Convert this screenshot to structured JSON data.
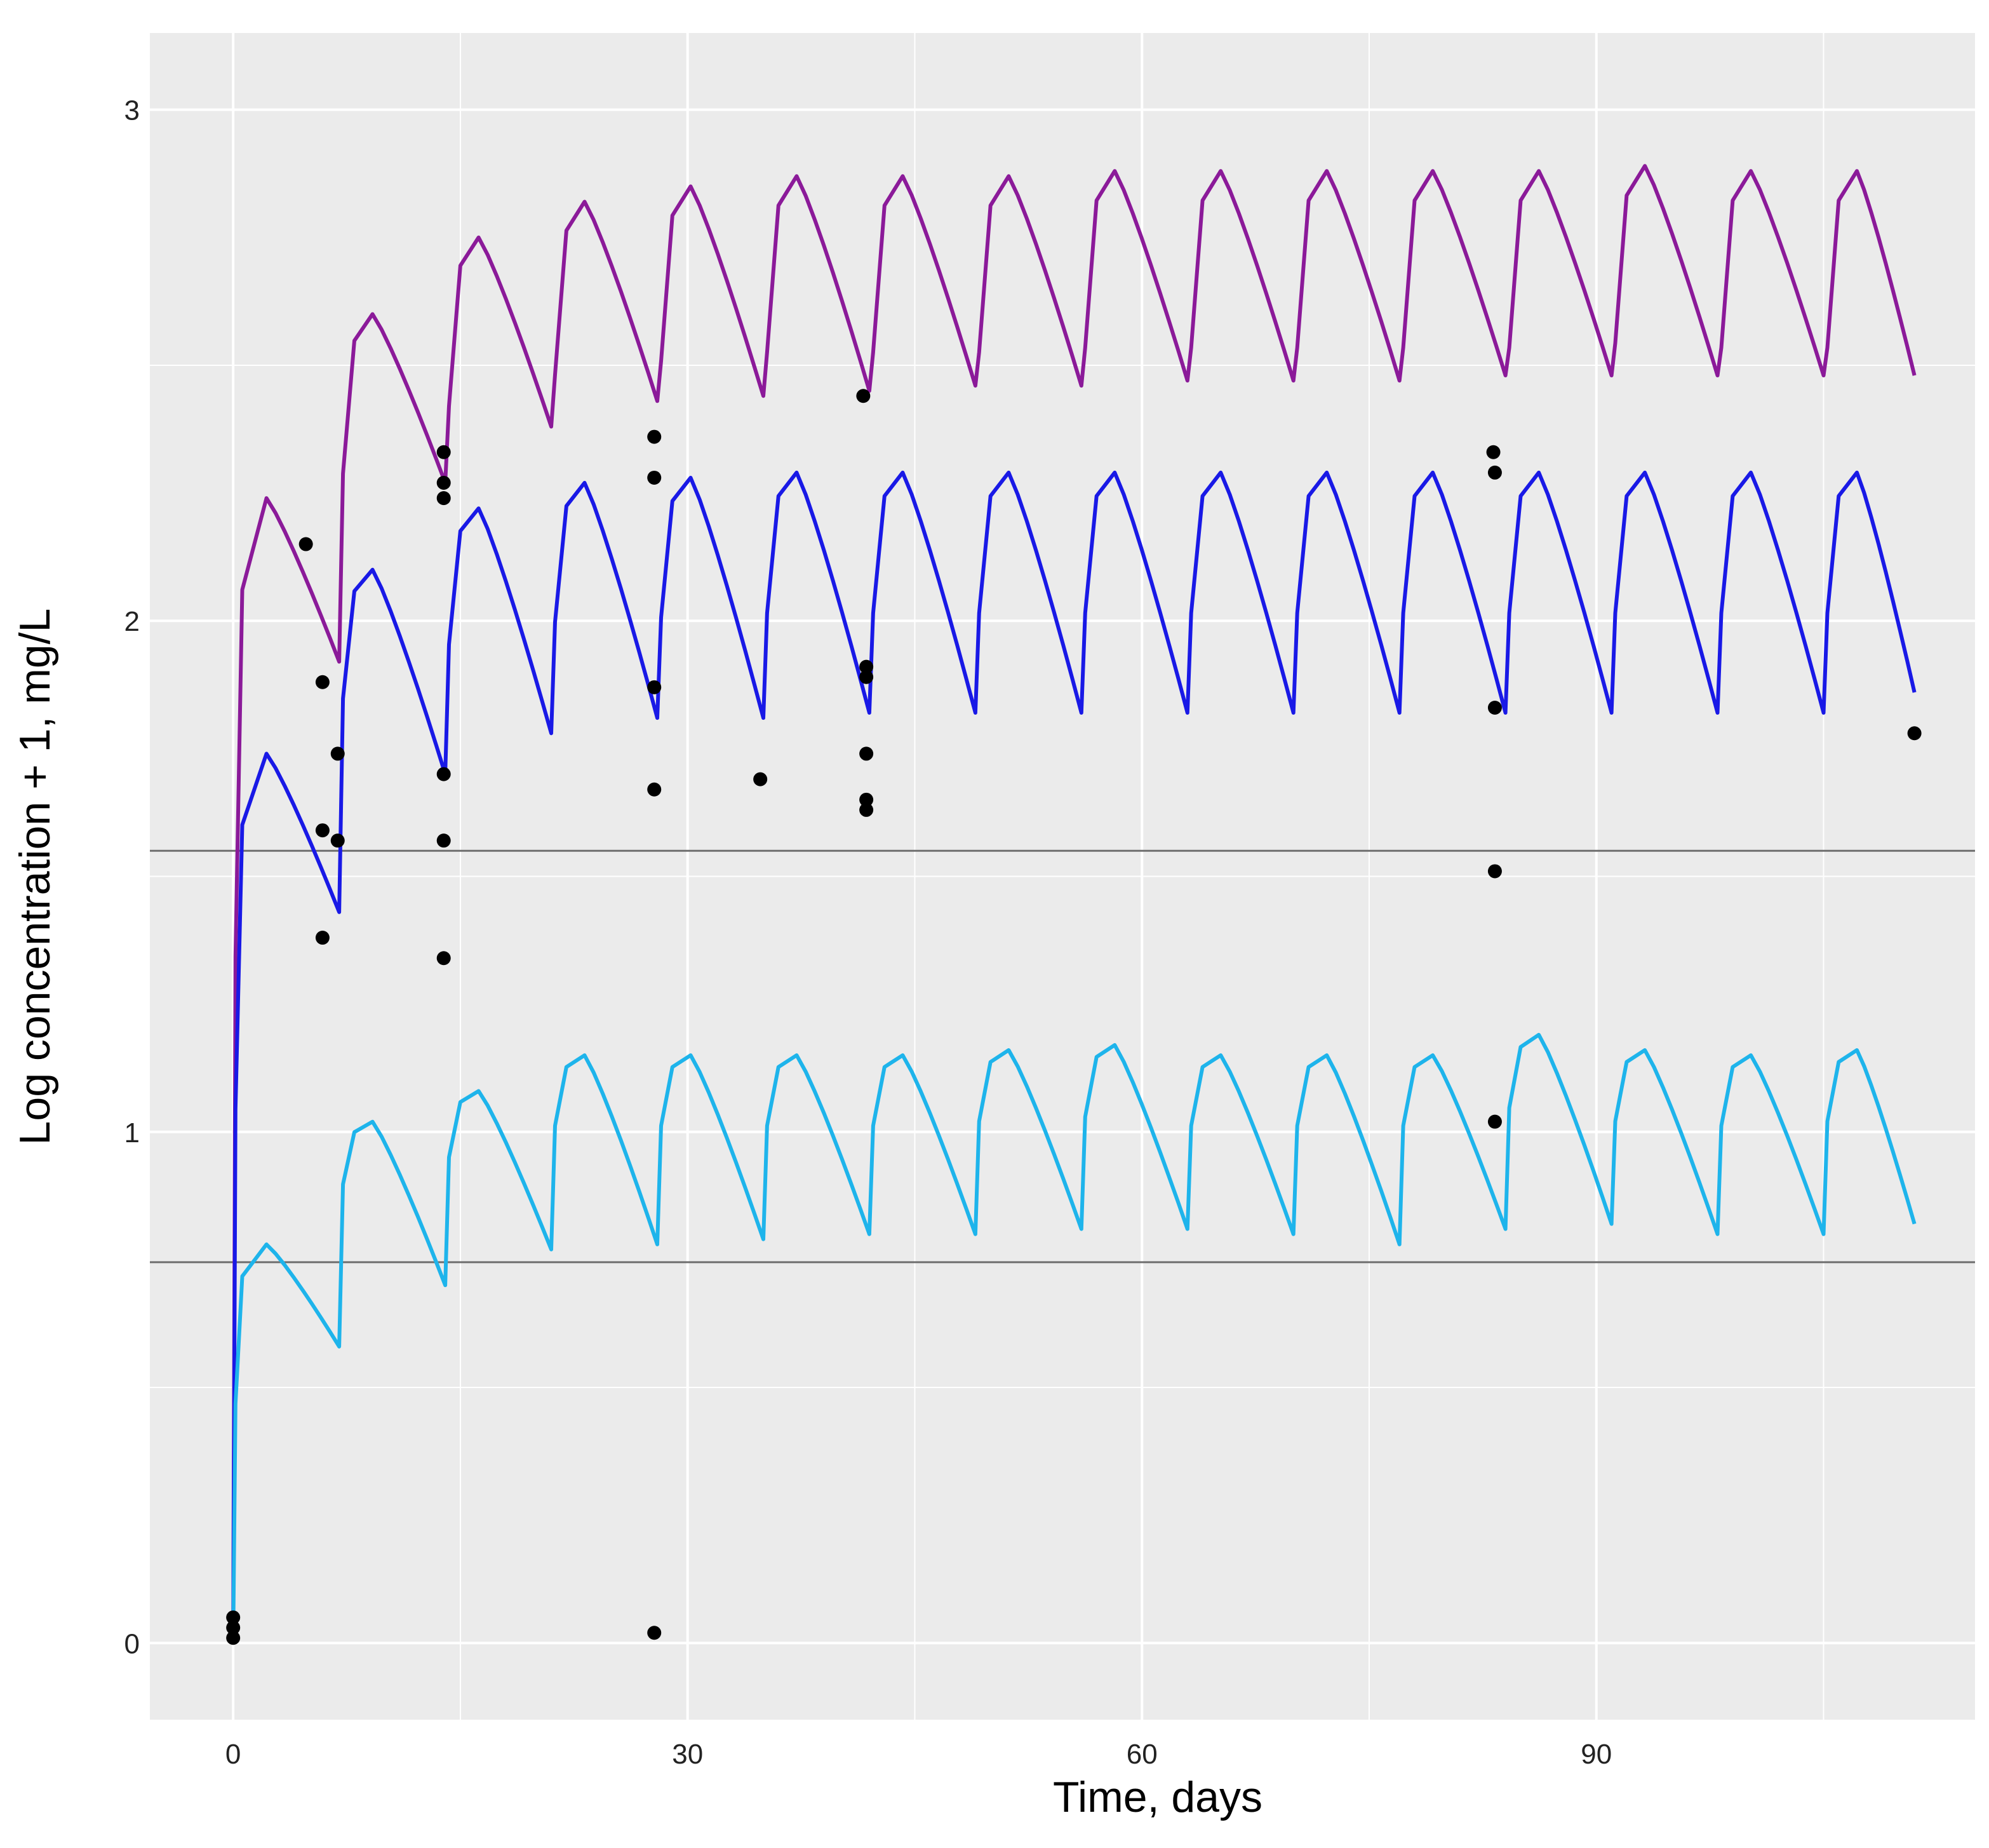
{
  "chart_data": {
    "type": "line",
    "title": "",
    "xlabel": "Time, days",
    "ylabel": "Log concentration + 1, mg/L",
    "xlim": [
      -5.5,
      115
    ],
    "ylim": [
      -0.15,
      3.15
    ],
    "xticks": [
      0,
      30,
      60,
      90
    ],
    "xtick_labels": [
      "0",
      "30",
      "60",
      "90"
    ],
    "yticks": [
      0,
      1,
      2,
      3
    ],
    "ytick_labels": [
      "0",
      "1",
      "2",
      "3"
    ],
    "reference_lines": [
      1.55,
      0.745
    ],
    "dosing": {
      "first_dose_day": 0,
      "second_dose_day": 7,
      "interval_days": 7,
      "end_day": 111
    },
    "series": [
      {
        "name": "upper",
        "color": "#8B1A99",
        "peaks": [
          2.24,
          2.6,
          2.75,
          2.82,
          2.85,
          2.87,
          2.87,
          2.87,
          2.88,
          2.88,
          2.88,
          2.88,
          2.88,
          2.89,
          2.88,
          2.88
        ],
        "troughs": [
          1.92,
          2.27,
          2.38,
          2.43,
          2.44,
          2.45,
          2.46,
          2.46,
          2.47,
          2.47,
          2.47,
          2.48
        ],
        "end_value": 2.48
      },
      {
        "name": "middle",
        "color": "#1919E6",
        "peaks": [
          1.74,
          2.1,
          2.22,
          2.27,
          2.28,
          2.29,
          2.29,
          2.29,
          2.29,
          2.29,
          2.29,
          2.29,
          2.29,
          2.29,
          2.29,
          2.29
        ],
        "troughs": [
          1.43,
          1.7,
          1.78,
          1.81,
          1.81,
          1.82,
          1.82,
          1.82,
          1.82,
          1.82,
          1.82,
          1.82,
          1.82,
          1.82,
          1.82
        ],
        "end_value": 1.86
      },
      {
        "name": "lower",
        "color": "#1EB4EB",
        "peaks": [
          0.78,
          1.02,
          1.08,
          1.15,
          1.15,
          1.15,
          1.15,
          1.16,
          1.17,
          1.15,
          1.15,
          1.15,
          1.19,
          1.16,
          1.15,
          1.16
        ],
        "troughs": [
          0.58,
          0.7,
          0.77,
          0.78,
          0.79,
          0.8,
          0.8,
          0.81,
          0.81,
          0.8,
          0.78,
          0.81,
          0.82,
          0.8,
          0.8
        ],
        "end_value": 0.82
      }
    ],
    "observations": {
      "color": "#000000",
      "points": [
        {
          "x": 0,
          "y": 0.05
        },
        {
          "x": 0,
          "y": 0.03
        },
        {
          "x": 0,
          "y": 0.01
        },
        {
          "x": 4.8,
          "y": 2.15
        },
        {
          "x": 5.9,
          "y": 1.88
        },
        {
          "x": 5.9,
          "y": 1.59
        },
        {
          "x": 5.9,
          "y": 1.38
        },
        {
          "x": 6.9,
          "y": 1.74
        },
        {
          "x": 6.9,
          "y": 1.57
        },
        {
          "x": 13.9,
          "y": 2.33
        },
        {
          "x": 13.9,
          "y": 2.27
        },
        {
          "x": 13.9,
          "y": 2.24
        },
        {
          "x": 13.9,
          "y": 1.7
        },
        {
          "x": 13.9,
          "y": 1.57
        },
        {
          "x": 13.9,
          "y": 1.34
        },
        {
          "x": 27.8,
          "y": 2.36
        },
        {
          "x": 27.8,
          "y": 2.28
        },
        {
          "x": 27.8,
          "y": 1.87
        },
        {
          "x": 27.8,
          "y": 1.67
        },
        {
          "x": 27.8,
          "y": 0.02
        },
        {
          "x": 34.8,
          "y": 1.69
        },
        {
          "x": 41.6,
          "y": 2.44
        },
        {
          "x": 41.8,
          "y": 1.91
        },
        {
          "x": 41.8,
          "y": 1.89
        },
        {
          "x": 41.8,
          "y": 1.74
        },
        {
          "x": 41.8,
          "y": 1.65
        },
        {
          "x": 41.8,
          "y": 1.63
        },
        {
          "x": 83.2,
          "y": 2.33
        },
        {
          "x": 83.3,
          "y": 2.29
        },
        {
          "x": 83.3,
          "y": 1.83
        },
        {
          "x": 83.3,
          "y": 1.51
        },
        {
          "x": 83.3,
          "y": 1.02
        },
        {
          "x": 111,
          "y": 1.78
        }
      ]
    }
  }
}
